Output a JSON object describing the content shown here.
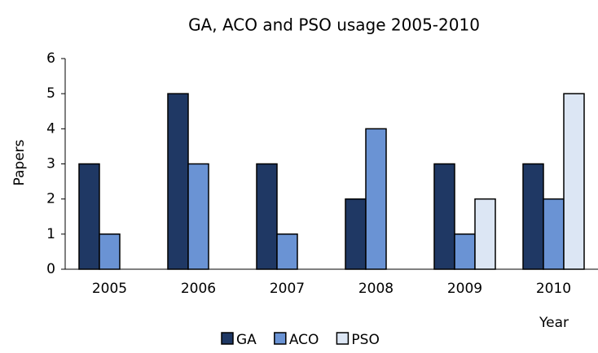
{
  "chart_data": {
    "type": "bar",
    "title": "GA, ACO and PSO usage 2005-2010",
    "x_label": "Year",
    "y_label": "Papers",
    "categories": [
      "2005",
      "2006",
      "2007",
      "2008",
      "2009",
      "2010"
    ],
    "series": [
      {
        "name": "GA",
        "color": "#1f3864",
        "values": [
          3,
          5,
          3,
          2,
          3,
          3
        ]
      },
      {
        "name": "ACO",
        "color": "#6a93d4",
        "values": [
          1,
          3,
          1,
          4,
          1,
          2
        ]
      },
      {
        "name": "PSO",
        "color": "#dce6f4",
        "values": [
          0,
          0,
          0,
          0,
          2,
          5
        ]
      }
    ],
    "ylim": [
      0,
      6
    ],
    "yticks": [
      0,
      1,
      2,
      3,
      4,
      5,
      6
    ],
    "grid": false,
    "legend": "bottom"
  }
}
